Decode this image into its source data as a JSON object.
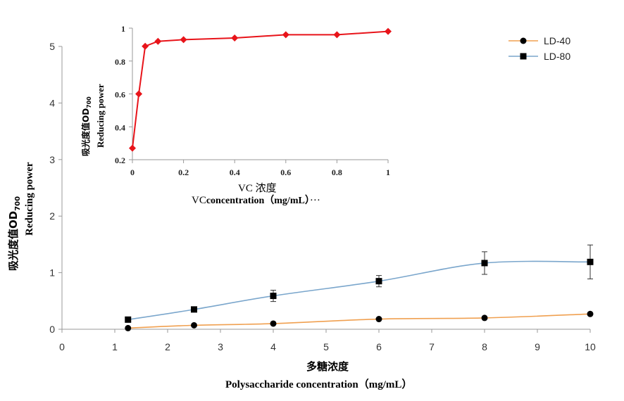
{
  "chart_data": [
    {
      "id": "main",
      "type": "line",
      "title": "",
      "xlabel_cn": "多糖浓度",
      "xlabel_en": "Polysaccharide concentration（mg/mL）",
      "ylabel_cn": "吸光度值OD",
      "ylabel_sub": "700",
      "ylabel_en": "Reducing power",
      "xlim": [
        0,
        10
      ],
      "ylim": [
        0,
        5
      ],
      "xticks": [
        "0",
        "1",
        "2",
        "3",
        "4",
        "5",
        "6",
        "7",
        "8",
        "9",
        "10"
      ],
      "yticks": [
        "0",
        "1",
        "2",
        "3",
        "4",
        "5"
      ],
      "legend_position": "top-right",
      "series": [
        {
          "name": "LD-40",
          "marker": "circle",
          "color": "#f0a050",
          "x": [
            1.25,
            2.5,
            4,
            6,
            8,
            10
          ],
          "y": [
            0.02,
            0.07,
            0.1,
            0.18,
            0.2,
            0.27
          ],
          "err": [
            0,
            0,
            0,
            0,
            0,
            0
          ]
        },
        {
          "name": "LD-80",
          "marker": "square",
          "color": "#7aa6cc",
          "x": [
            1.25,
            2.5,
            4,
            6,
            8,
            10
          ],
          "y": [
            0.17,
            0.35,
            0.59,
            0.85,
            1.17,
            1.19
          ],
          "err": [
            0,
            0,
            0.1,
            0.1,
            0.2,
            0.3
          ]
        }
      ]
    },
    {
      "id": "inset",
      "type": "line",
      "xlabel_line1": "VC 浓度",
      "xlabel_prefix": "VC",
      "xlabel_line2": "concentration（mg/mL）",
      "xlabel_suffix": "···",
      "ylabel_cn": "吸光度值OD",
      "ylabel_sub": "700",
      "ylabel_en": "Reducing power",
      "xlim": [
        0,
        1
      ],
      "ylim": [
        0.2,
        1
      ],
      "xticks": [
        "0",
        "0.2",
        "0.4",
        "0.6",
        "0.8",
        "1"
      ],
      "yticks": [
        "0.2",
        "0.4",
        "0.6",
        "0.8",
        "1"
      ],
      "series": [
        {
          "name": "VC",
          "marker": "diamond",
          "color": "#e8141a",
          "x": [
            0,
            0.025,
            0.05,
            0.1,
            0.2,
            0.4,
            0.6,
            0.8,
            1.0
          ],
          "y": [
            0.27,
            0.6,
            0.89,
            0.92,
            0.93,
            0.94,
            0.96,
            0.96,
            0.98
          ]
        }
      ]
    }
  ]
}
